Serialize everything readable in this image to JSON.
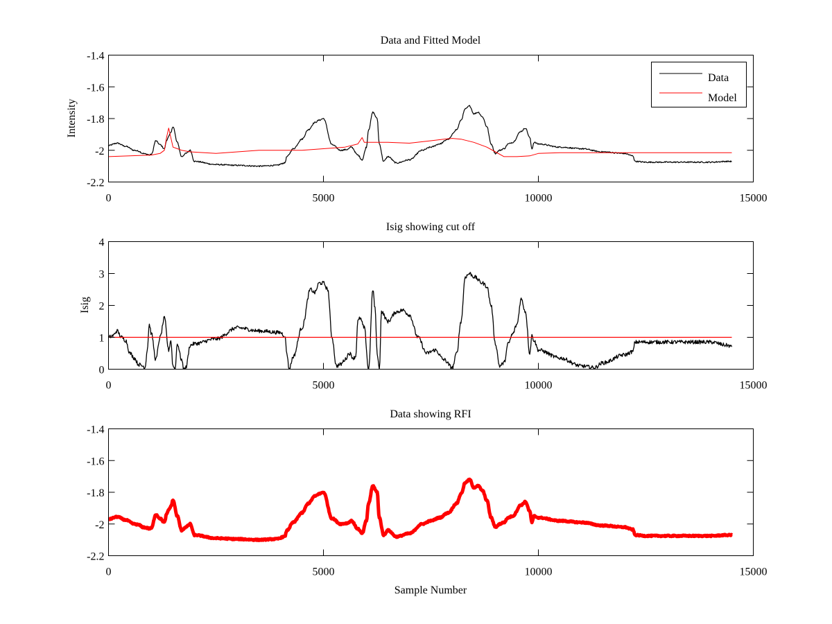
{
  "chart_data": [
    {
      "type": "line",
      "title": "Data and Fitted Model",
      "xlabel": "",
      "ylabel": "Intensity",
      "xlim": [
        0,
        15000
      ],
      "ylim": [
        -2.2,
        -1.4
      ],
      "xticks": [
        0,
        5000,
        10000,
        15000
      ],
      "xtick_labels": [
        "0",
        "5000",
        "10000",
        "15000"
      ],
      "yticks": [
        -1.4,
        -1.6,
        -1.8,
        -2,
        -2.2
      ],
      "ytick_labels": [
        "-1.4",
        "-1.6",
        "-1.8",
        "-2",
        "-2.2"
      ],
      "grid": false,
      "legend": {
        "placement": "top-right",
        "entries": [
          "Data",
          "Model"
        ]
      },
      "series": [
        {
          "name": "Data",
          "color": "#000000",
          "noise": 0.004,
          "x": [
            0,
            200,
            400,
            600,
            700,
            800,
            900,
            950,
            1000,
            1100,
            1200,
            1300,
            1350,
            1400,
            1450,
            1500,
            1600,
            1700,
            1800,
            1900,
            2000,
            2500,
            3000,
            3500,
            3900,
            4100,
            4150,
            4300,
            4500,
            4650,
            4800,
            4900,
            5000,
            5200,
            5400,
            5550,
            5650,
            5800,
            5900,
            6000,
            6050,
            6150,
            6250,
            6300,
            6400,
            6500,
            6700,
            7000,
            7300,
            7500,
            7700,
            7900,
            8100,
            8200,
            8300,
            8400,
            8500,
            8600,
            8700,
            8800,
            8900,
            9000,
            9100,
            9200,
            9300,
            9400,
            9600,
            9700,
            9800,
            9850,
            9900,
            10000,
            10500,
            11000,
            11500,
            12000,
            12200,
            12250,
            12500,
            13000,
            13500,
            14000,
            14400,
            14500
          ],
          "y": [
            -1.97,
            -1.955,
            -1.975,
            -2.0,
            -2.005,
            -2.02,
            -2.025,
            -2.03,
            -2.025,
            -1.94,
            -1.965,
            -1.99,
            -1.94,
            -1.91,
            -1.89,
            -1.85,
            -1.95,
            -2.04,
            -2.02,
            -2.0,
            -2.07,
            -2.09,
            -2.095,
            -2.1,
            -2.095,
            -2.08,
            -2.04,
            -1.99,
            -1.93,
            -1.87,
            -1.825,
            -1.81,
            -1.8,
            -1.965,
            -2.0,
            -1.995,
            -1.98,
            -2.03,
            -2.06,
            -1.98,
            -1.87,
            -1.76,
            -1.8,
            -1.96,
            -2.07,
            -2.04,
            -2.08,
            -2.06,
            -2.0,
            -1.98,
            -1.96,
            -1.93,
            -1.87,
            -1.81,
            -1.74,
            -1.72,
            -1.77,
            -1.76,
            -1.79,
            -1.85,
            -1.96,
            -2.02,
            -2.0,
            -1.99,
            -1.96,
            -1.95,
            -1.88,
            -1.86,
            -1.92,
            -1.99,
            -1.95,
            -1.96,
            -1.98,
            -1.99,
            -2.01,
            -2.02,
            -2.035,
            -2.07,
            -2.075,
            -2.075,
            -2.075,
            -2.075,
            -2.07,
            -2.07
          ]
        },
        {
          "name": "Model",
          "color": "#ff0000",
          "noise": 0,
          "x": [
            0,
            500,
            1000,
            1200,
            1300,
            1350,
            1400,
            1500,
            1700,
            1900,
            2500,
            3000,
            3500,
            4000,
            4500,
            5000,
            5500,
            5800,
            5900,
            5950,
            6000,
            6100,
            6500,
            7000,
            7500,
            7800,
            8000,
            8200,
            8500,
            8800,
            9000,
            9200,
            9500,
            9800,
            10000,
            10500,
            11000,
            12000,
            13000,
            14500
          ],
          "y": [
            -2.04,
            -2.035,
            -2.03,
            -2.02,
            -2.0,
            -1.92,
            -1.86,
            -1.98,
            -2.0,
            -2.01,
            -2.02,
            -2.01,
            -2.0,
            -2.0,
            -2.0,
            -1.99,
            -1.98,
            -1.96,
            -1.92,
            -1.95,
            -1.95,
            -1.95,
            -1.95,
            -1.955,
            -1.94,
            -1.93,
            -1.925,
            -1.93,
            -1.95,
            -1.98,
            -2.01,
            -2.04,
            -2.04,
            -2.035,
            -2.02,
            -2.015,
            -2.015,
            -2.015,
            -2.015,
            -2.015
          ]
        }
      ]
    },
    {
      "type": "line",
      "title": "Isig showing cut off",
      "xlabel": "",
      "ylabel": "Isig",
      "xlim": [
        0,
        15000
      ],
      "ylim": [
        0,
        4
      ],
      "xticks": [
        0,
        5000,
        10000,
        15000
      ],
      "xtick_labels": [
        "0",
        "5000",
        "10000",
        "15000"
      ],
      "yticks": [
        4,
        3,
        2,
        1,
        0
      ],
      "ytick_labels": [
        "4",
        "3",
        "2",
        "1",
        "0"
      ],
      "grid": false,
      "series": [
        {
          "name": "Isig",
          "color": "#000000",
          "noise": 0.06,
          "x": [
            0,
            100,
            200,
            300,
            400,
            500,
            600,
            700,
            800,
            850,
            900,
            950,
            1000,
            1100,
            1200,
            1300,
            1400,
            1450,
            1500,
            1550,
            1600,
            1700,
            1750,
            1800,
            1900,
            2000,
            2500,
            3000,
            3500,
            4000,
            4100,
            4150,
            4200,
            4300,
            4500,
            4700,
            4800,
            4900,
            5000,
            5100,
            5200,
            5300,
            5400,
            5500,
            5600,
            5700,
            5750,
            5800,
            5850,
            5950,
            6050,
            6150,
            6200,
            6250,
            6300,
            6350,
            6500,
            6700,
            6850,
            7000,
            7200,
            7400,
            7600,
            7800,
            8000,
            8100,
            8200,
            8300,
            8400,
            8500,
            8700,
            8800,
            8900,
            9000,
            9100,
            9200,
            9300,
            9400,
            9500,
            9600,
            9700,
            9800,
            9850,
            9900,
            10000,
            10500,
            11000,
            11300,
            11500,
            12000,
            12200,
            12250,
            12500,
            13000,
            13500,
            14000,
            14400,
            14500
          ],
          "y": [
            1.0,
            1.05,
            1.2,
            1.0,
            0.9,
            0.5,
            0.35,
            0.15,
            0.1,
            0.05,
            0.6,
            1.4,
            1.1,
            0.3,
            1.0,
            1.6,
            0.6,
            0.9,
            0.1,
            0.0,
            0.8,
            0.3,
            0.0,
            0.05,
            0.75,
            0.8,
            0.95,
            1.3,
            1.2,
            1.15,
            1.05,
            0.5,
            0.0,
            0.4,
            1.3,
            2.5,
            2.4,
            2.7,
            2.7,
            2.5,
            1.0,
            0.1,
            0.15,
            0.3,
            0.5,
            0.35,
            0.4,
            1.5,
            1.6,
            1.3,
            0.0,
            2.5,
            1.9,
            0.5,
            0.0,
            1.8,
            1.5,
            1.8,
            1.85,
            1.7,
            1.0,
            0.5,
            0.6,
            0.3,
            0.05,
            0.5,
            1.5,
            2.9,
            3.0,
            2.9,
            2.7,
            2.6,
            2.0,
            0.8,
            0.1,
            0.2,
            0.8,
            1.1,
            1.4,
            2.2,
            1.8,
            0.5,
            1.05,
            0.9,
            0.6,
            0.35,
            0.1,
            0.05,
            0.2,
            0.45,
            0.55,
            0.85,
            0.85,
            0.85,
            0.85,
            0.85,
            0.75,
            0.7
          ]
        },
        {
          "name": "Cut off",
          "color": "#ff0000",
          "noise": 0,
          "x": [
            0,
            14500
          ],
          "y": [
            1.0,
            1.0
          ]
        }
      ]
    },
    {
      "type": "line",
      "title": "Data showing RFI",
      "xlabel": "Sample Number",
      "ylabel": "",
      "xlim": [
        0,
        15000
      ],
      "ylim": [
        -2.2,
        -1.4
      ],
      "xticks": [
        0,
        5000,
        10000,
        15000
      ],
      "xtick_labels": [
        "0",
        "5000",
        "10000",
        "15000"
      ],
      "yticks": [
        -1.4,
        -1.6,
        -1.8,
        -2,
        -2.2
      ],
      "ytick_labels": [
        "-1.4",
        "-1.6",
        "-1.8",
        "-2",
        "-2.2"
      ],
      "grid": false,
      "series": [
        {
          "name": "RFI Data",
          "color": "#ff0000",
          "noise": 0.004,
          "x": [
            0,
            200,
            400,
            600,
            700,
            800,
            900,
            950,
            1000,
            1100,
            1200,
            1300,
            1350,
            1400,
            1450,
            1500,
            1600,
            1700,
            1800,
            1900,
            2000,
            2500,
            3000,
            3500,
            3900,
            4100,
            4150,
            4300,
            4500,
            4650,
            4800,
            4900,
            5000,
            5200,
            5400,
            5550,
            5650,
            5800,
            5900,
            6000,
            6050,
            6150,
            6250,
            6300,
            6400,
            6500,
            6700,
            7000,
            7300,
            7500,
            7700,
            7900,
            8100,
            8200,
            8300,
            8400,
            8500,
            8600,
            8700,
            8800,
            8900,
            9000,
            9100,
            9200,
            9300,
            9400,
            9600,
            9700,
            9800,
            9850,
            9900,
            10000,
            10500,
            11000,
            11500,
            12000,
            12200,
            12250,
            12500,
            13000,
            13500,
            14000,
            14400,
            14500
          ],
          "y": [
            -1.97,
            -1.955,
            -1.975,
            -2.0,
            -2.005,
            -2.02,
            -2.025,
            -2.03,
            -2.025,
            -1.94,
            -1.965,
            -1.99,
            -1.94,
            -1.91,
            -1.89,
            -1.85,
            -1.95,
            -2.04,
            -2.02,
            -2.0,
            -2.07,
            -2.09,
            -2.095,
            -2.1,
            -2.095,
            -2.08,
            -2.04,
            -1.99,
            -1.93,
            -1.87,
            -1.825,
            -1.81,
            -1.8,
            -1.965,
            -2.0,
            -1.995,
            -1.98,
            -2.03,
            -2.06,
            -1.98,
            -1.87,
            -1.76,
            -1.8,
            -1.96,
            -2.07,
            -2.04,
            -2.08,
            -2.06,
            -2.0,
            -1.98,
            -1.96,
            -1.93,
            -1.87,
            -1.81,
            -1.74,
            -1.72,
            -1.77,
            -1.76,
            -1.79,
            -1.85,
            -1.96,
            -2.02,
            -2.0,
            -1.99,
            -1.96,
            -1.95,
            -1.88,
            -1.86,
            -1.92,
            -1.99,
            -1.95,
            -1.96,
            -1.98,
            -1.99,
            -2.01,
            -2.02,
            -2.035,
            -2.07,
            -2.075,
            -2.075,
            -2.075,
            -2.075,
            -2.07,
            -2.07
          ]
        }
      ]
    }
  ]
}
